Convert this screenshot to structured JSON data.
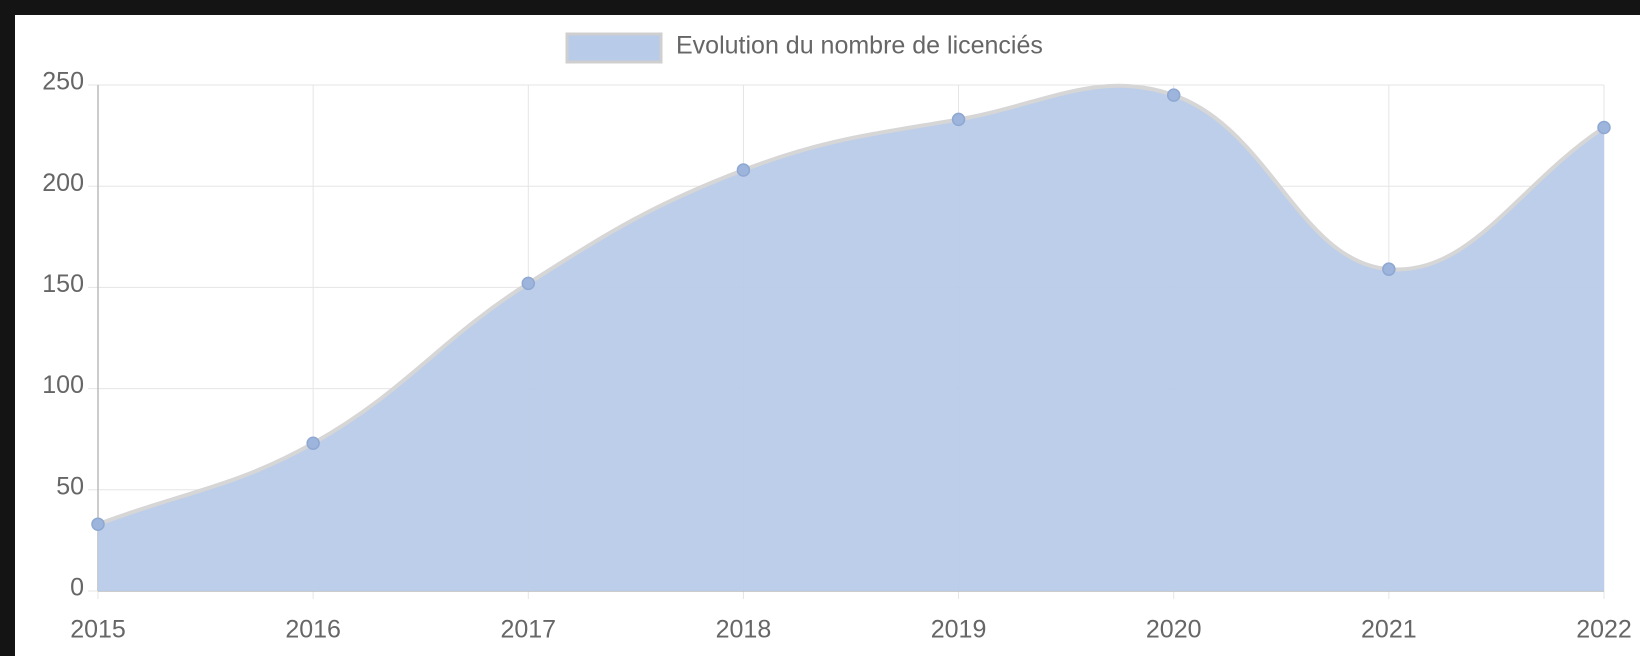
{
  "chart_data": {
    "type": "area",
    "categories": [
      "2015",
      "2016",
      "2017",
      "2018",
      "2019",
      "2020",
      "2021",
      "2022"
    ],
    "series": [
      {
        "name": "Evolution du nombre de licenciés",
        "color": "#b8cbe8",
        "values": [
          33,
          73,
          152,
          208,
          233,
          245,
          159,
          229
        ]
      }
    ],
    "ylim": [
      0,
      250
    ],
    "yticks": [
      0,
      50,
      100,
      150,
      200,
      250
    ],
    "grid": true,
    "legend": "top"
  }
}
